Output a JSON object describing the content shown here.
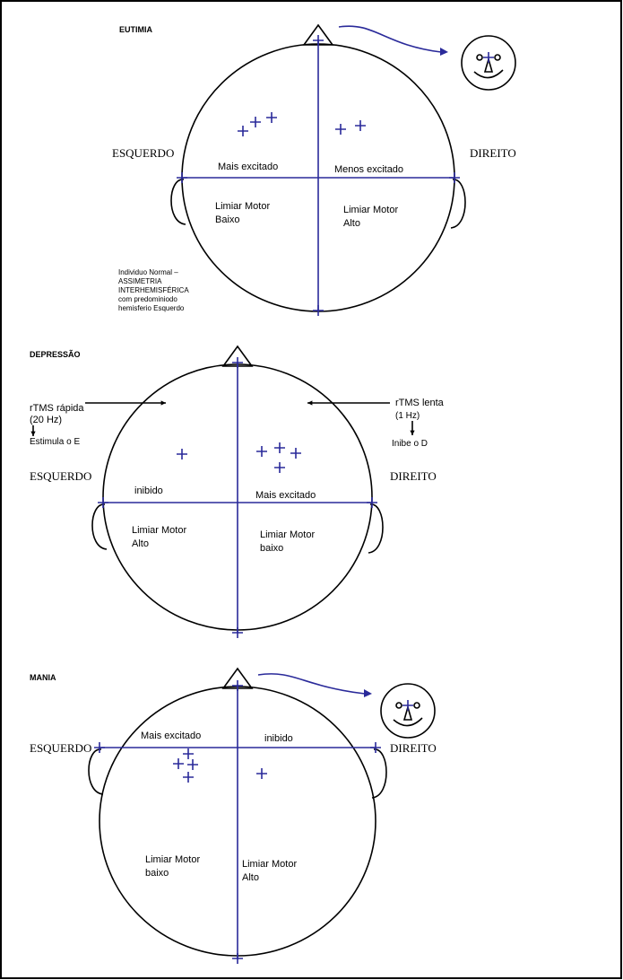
{
  "panels": [
    {
      "title": "EUTIMIA",
      "left_label": "ESQUERDO",
      "right_label": "DIREITO",
      "upper_left": "Mais excitado",
      "upper_right": "Menos excitado",
      "lower_left": [
        "Limiar Motor",
        "Baixo"
      ],
      "lower_right": [
        "Limiar Motor",
        "Alto"
      ],
      "note": [
        "Individuo Normal –",
        "ASSIMETRIA",
        "INTERHEMISFÉRICA",
        "com predominiodo",
        "hemisferio Esquerdo"
      ]
    },
    {
      "title": "DEPRESSÃO",
      "left_label": "ESQUERDO",
      "right_label": "DIREITO",
      "upper_left": "inibido",
      "upper_right": "Mais excitado",
      "lower_left": [
        "Limiar Motor",
        "Alto"
      ],
      "lower_right": [
        "Limiar Motor",
        "baixo"
      ],
      "left_stimulus": [
        "rTMS rápida",
        "(20 Hz)"
      ],
      "left_effect": "Estimula o E",
      "right_stimulus": [
        "rTMS lenta",
        "(1 Hz)"
      ],
      "right_effect": "Inibe o D"
    },
    {
      "title": "MANIA",
      "left_label": "ESQUERDO",
      "right_label": "DIREITO",
      "upper_left": "Mais excitado",
      "upper_right": "inibido",
      "lower_left": [
        "Limiar Motor",
        "baixo"
      ],
      "lower_right": [
        "Limiar Motor",
        "Alto"
      ]
    }
  ]
}
